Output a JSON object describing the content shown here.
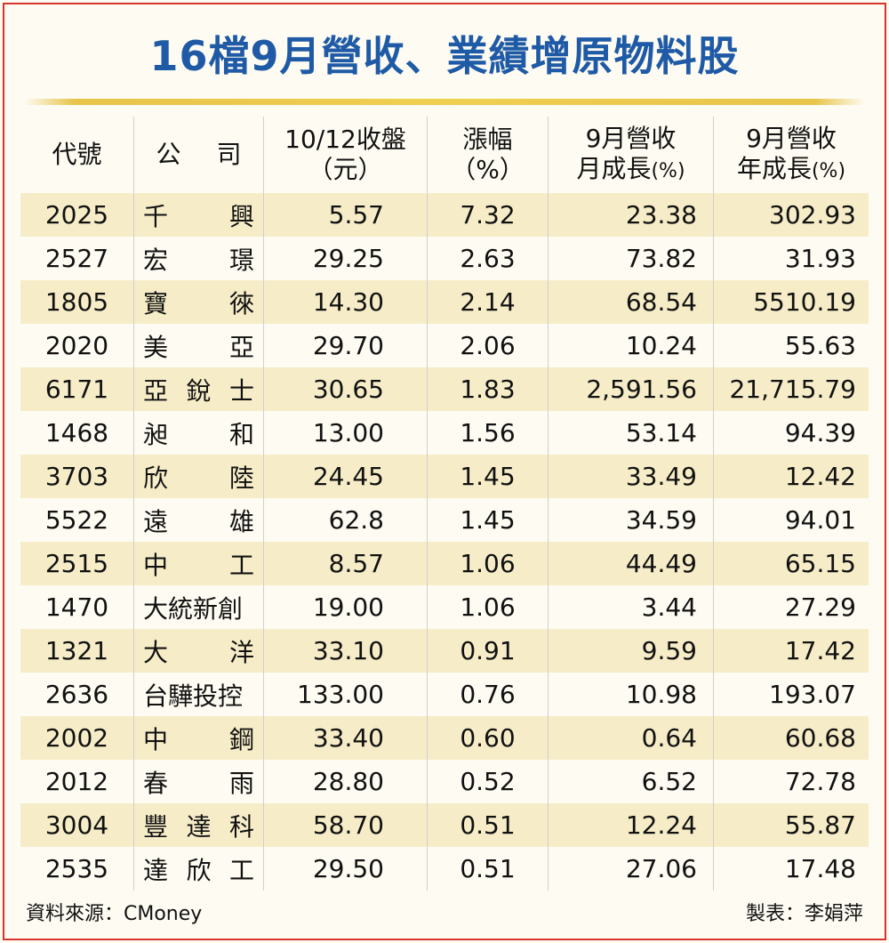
{
  "title": "16檔9月營收、業績增原物料股",
  "headers": {
    "code": "代號",
    "company": [
      "公",
      "司"
    ],
    "close_line1": "10/12收盤",
    "close_line2": "（元）",
    "change_line1": "漲幅",
    "change_line2": "（%）",
    "mom_line1": "9月營收",
    "mom_line2": "月成長",
    "mom_unit": "(%)",
    "yoy_line1": "9月營收",
    "yoy_line2": "年成長",
    "yoy_unit": "(%)"
  },
  "rows": [
    {
      "code": "2025",
      "name": [
        "千",
        "興"
      ],
      "close": "5.57",
      "change": "7.32",
      "mom": "23.38",
      "yoy": "302.93"
    },
    {
      "code": "2527",
      "name": [
        "宏",
        "璟"
      ],
      "close": "29.25",
      "change": "2.63",
      "mom": "73.82",
      "yoy": "31.93"
    },
    {
      "code": "1805",
      "name": [
        "寶",
        "徠"
      ],
      "close": "14.30",
      "change": "2.14",
      "mom": "68.54",
      "yoy": "5510.19"
    },
    {
      "code": "2020",
      "name": [
        "美",
        "亞"
      ],
      "close": "29.70",
      "change": "2.06",
      "mom": "10.24",
      "yoy": "55.63"
    },
    {
      "code": "6171",
      "name": [
        "亞",
        "銳",
        "士"
      ],
      "close": "30.65",
      "change": "1.83",
      "mom": "2,591.56",
      "yoy": "21,715.79"
    },
    {
      "code": "1468",
      "name": [
        "昶",
        "和"
      ],
      "close": "13.00",
      "change": "1.56",
      "mom": "53.14",
      "yoy": "94.39"
    },
    {
      "code": "3703",
      "name": [
        "欣",
        "陸"
      ],
      "close": "24.45",
      "change": "1.45",
      "mom": "33.49",
      "yoy": "12.42"
    },
    {
      "code": "5522",
      "name": [
        "遠",
        "雄"
      ],
      "close": "62.8",
      "change": "1.45",
      "mom": "34.59",
      "yoy": "94.01"
    },
    {
      "code": "2515",
      "name": [
        "中",
        "工"
      ],
      "close": "8.57",
      "change": "1.06",
      "mom": "44.49",
      "yoy": "65.15"
    },
    {
      "code": "1470",
      "name": [
        "大統新創"
      ],
      "close": "19.00",
      "change": "1.06",
      "mom": "3.44",
      "yoy": "27.29"
    },
    {
      "code": "1321",
      "name": [
        "大",
        "洋"
      ],
      "close": "33.10",
      "change": "0.91",
      "mom": "9.59",
      "yoy": "17.42"
    },
    {
      "code": "2636",
      "name": [
        "台驊投控"
      ],
      "close": "133.00",
      "change": "0.76",
      "mom": "10.98",
      "yoy": "193.07"
    },
    {
      "code": "2002",
      "name": [
        "中",
        "鋼"
      ],
      "close": "33.40",
      "change": "0.60",
      "mom": "0.64",
      "yoy": "60.68"
    },
    {
      "code": "2012",
      "name": [
        "春",
        "雨"
      ],
      "close": "28.80",
      "change": "0.52",
      "mom": "6.52",
      "yoy": "72.78"
    },
    {
      "code": "3004",
      "name": [
        "豐",
        "達",
        "科"
      ],
      "close": "58.70",
      "change": "0.51",
      "mom": "12.24",
      "yoy": "55.87"
    },
    {
      "code": "2535",
      "name": [
        "達",
        "欣",
        "工"
      ],
      "close": "29.50",
      "change": "0.51",
      "mom": "27.06",
      "yoy": "17.48"
    }
  ],
  "footer": {
    "source": "資料來源：CMoney",
    "author": "製表：李娟萍"
  }
}
